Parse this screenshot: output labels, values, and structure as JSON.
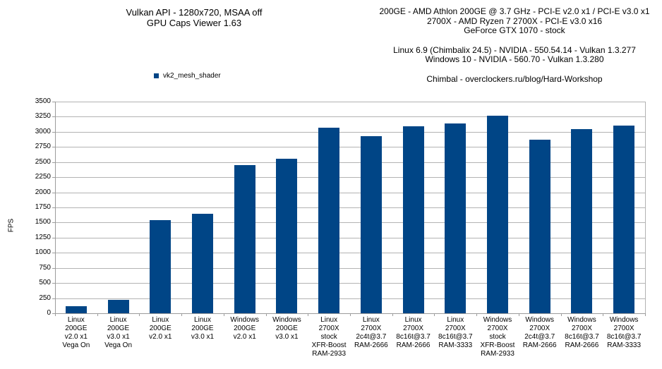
{
  "header": {
    "title_line1": "Vulkan API - 1280x720, MSAA off",
    "title_line2": "GPU Caps Viewer 1.63",
    "system_info": [
      "200GE - AMD Athlon 200GE @ 3.7 GHz - PCI-E v2.0 x1 / PCI-E v3.0 x1",
      "2700X - AMD Ryzen 7 2700X - PCI-E v3.0 x16",
      "GeForce GTX 1070 - stock"
    ],
    "driver_info": [
      "Linux 6.9 (Chimbalix 24.5) - NVIDIA - 550.54.14 - Vulkan 1.3.277",
      "Windows 10 - NVIDIA - 560.70 - Vulkan 1.3.280"
    ],
    "credit": "Chimbal - overclockers.ru/blog/Hard-Workshop"
  },
  "legend": {
    "label": "vk2_mesh_shader",
    "color": "#004586"
  },
  "chart_data": {
    "type": "bar",
    "title": "Vulkan API - 1280x720, MSAA off",
    "subtitle": "GPU Caps Viewer 1.63",
    "series_name": "vk2_mesh_shader",
    "xlabel": "",
    "ylabel": "FPS",
    "ylim": [
      0,
      3500
    ],
    "ytick_step": 250,
    "grid": true,
    "legend_position": "top-left",
    "bar_color": "#004586",
    "gridline_color": "#b3b3b3",
    "axis_color": "#9c9c9c",
    "categories": [
      "Linux\n200GE\nv2.0 x1\nVega On",
      "Linux\n200GE\nv3.0 x1\nVega On",
      "Linux\n200GE\nv2.0 x1",
      "Linux\n200GE\nv3.0 x1",
      "Windows\n200GE\nv2.0 x1",
      "Windows\n200GE\nv3.0 x1",
      "Linux\n2700X\nstock\nXFR-Boost\nRAM-2933",
      "Linux\n2700X\n2c4t@3.7\nRAM-2666",
      "Linux\n2700X\n8c16t@3.7\nRAM-2666",
      "Linux\n2700X\n8c16t@3.7\nRAM-3333",
      "Windows\n2700X\nstock\nXFR-Boost\nRAM-2933",
      "Windows\n2700X\n2c4t@3.7\nRAM-2666",
      "Windows\n2700X\n8c16t@3.7\nRAM-2666",
      "Windows\n2700X\n8c16t@3.7\nRAM-3333"
    ],
    "values": [
      115,
      220,
      1540,
      1650,
      2450,
      2550,
      3070,
      2930,
      3090,
      3140,
      3270,
      2870,
      3040,
      3100
    ]
  }
}
